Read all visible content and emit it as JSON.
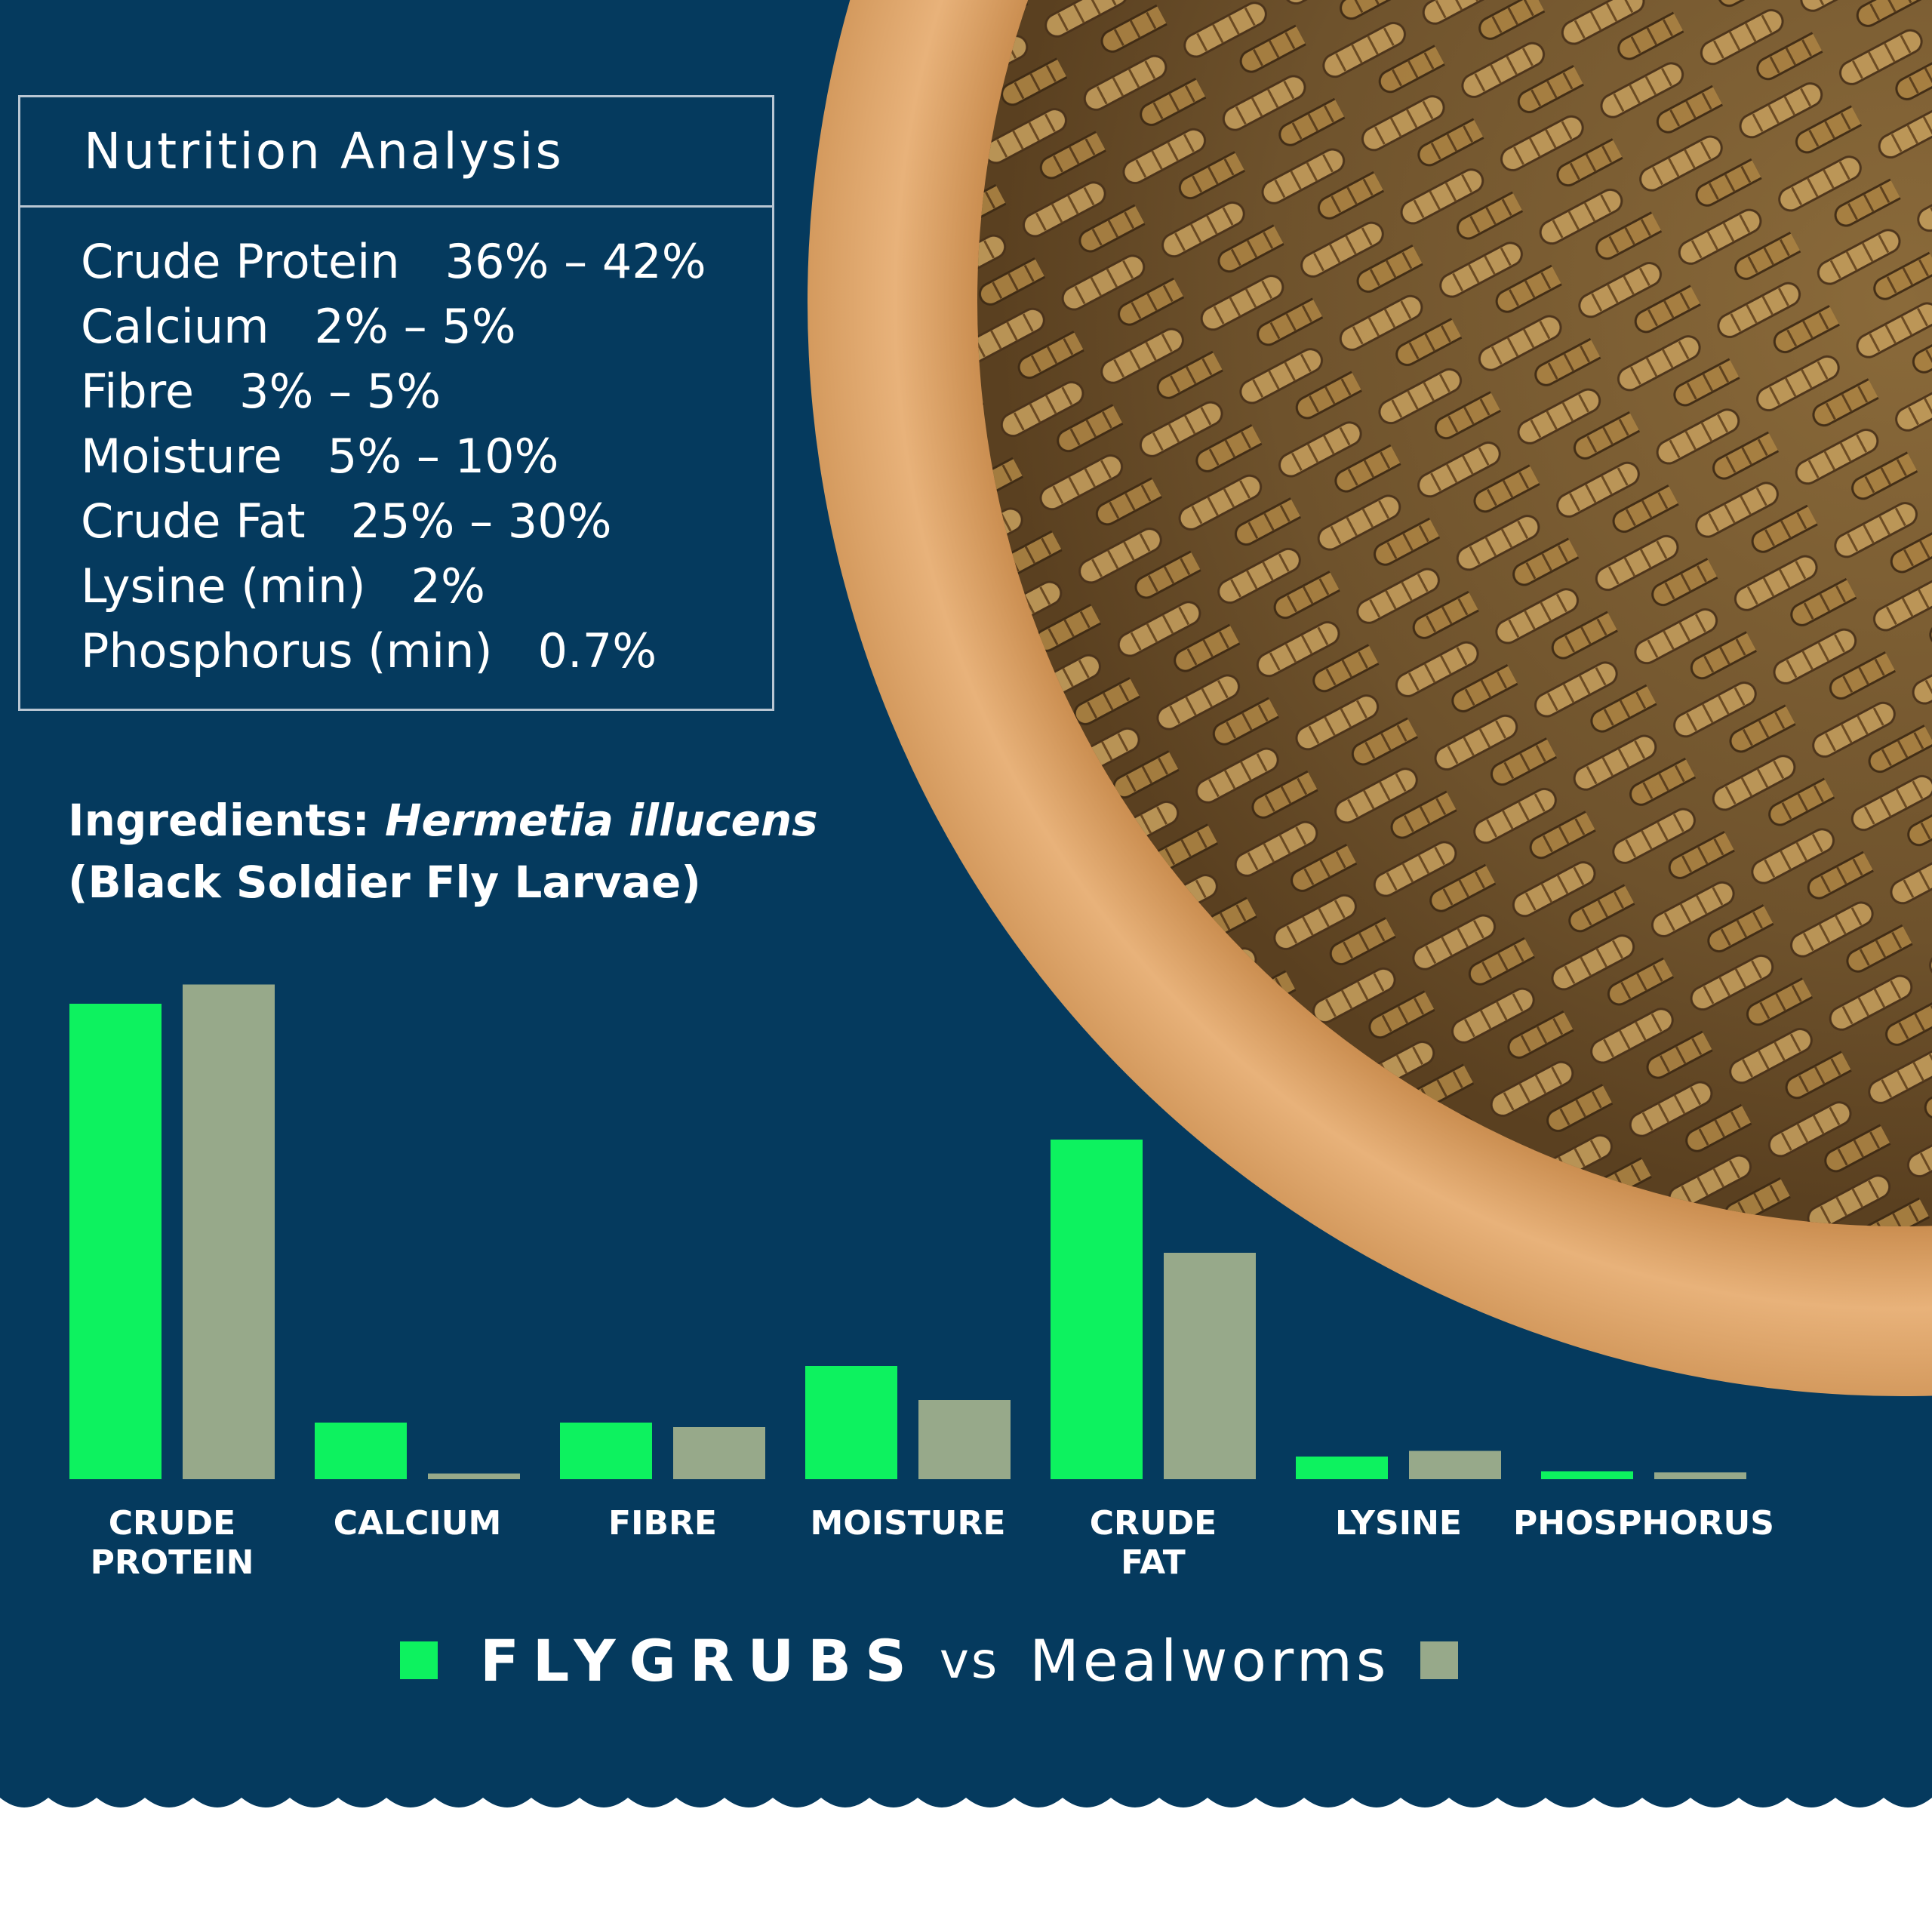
{
  "nutrition": {
    "title": "Nutrition Analysis",
    "rows": [
      {
        "name": "Crude Protein",
        "value": "36% – 42%"
      },
      {
        "name": "Calcium",
        "value": "2% – 5%"
      },
      {
        "name": "Fibre",
        "value": "3% – 5%"
      },
      {
        "name": "Moisture",
        "value": "5% – 10%"
      },
      {
        "name": "Crude Fat",
        "value": "25% – 30%"
      },
      {
        "name": "Lysine (min)",
        "value": "2%"
      },
      {
        "name": "Phosphorus (min)",
        "value": "0.7%"
      }
    ]
  },
  "ingredients": {
    "prefix": "Ingredients:",
    "scientific": "Hermetia illucens",
    "common": "(Black Soldier Fly Larvae)"
  },
  "colors": {
    "background": "#053a5e",
    "flygrubs": "#0df25f",
    "mealworms": "#97a98a",
    "text": "#ffffff"
  },
  "chart_data": {
    "type": "bar",
    "categories": [
      "CRUDE PROTEIN",
      "CALCIUM",
      "FIBRE",
      "MOISTURE",
      "CRUDE FAT",
      "LYSINE",
      "PHOSPHORUS"
    ],
    "category_lines": [
      [
        "CRUDE",
        "PROTEIN"
      ],
      [
        "CALCIUM"
      ],
      [
        "FIBRE"
      ],
      [
        "MOISTURE"
      ],
      [
        "CRUDE",
        "FAT"
      ],
      [
        "LYSINE"
      ],
      [
        "PHOSPHORUS"
      ]
    ],
    "series": [
      {
        "name": "FLYGRUBS",
        "color": "#0df25f",
        "values": [
          42,
          5,
          5,
          10,
          30,
          2,
          0.7
        ]
      },
      {
        "name": "Mealworms",
        "color": "#97a98a",
        "values": [
          43.7,
          0.5,
          4.6,
          7,
          20,
          2.5,
          0.6
        ]
      }
    ],
    "ylim": [
      0,
      44
    ],
    "legend_placement": "bottom",
    "grid": false,
    "axis_lines": false
  },
  "legend": {
    "s1": "FLYGRUBS",
    "vs": "vs",
    "s2": "Mealworms"
  }
}
